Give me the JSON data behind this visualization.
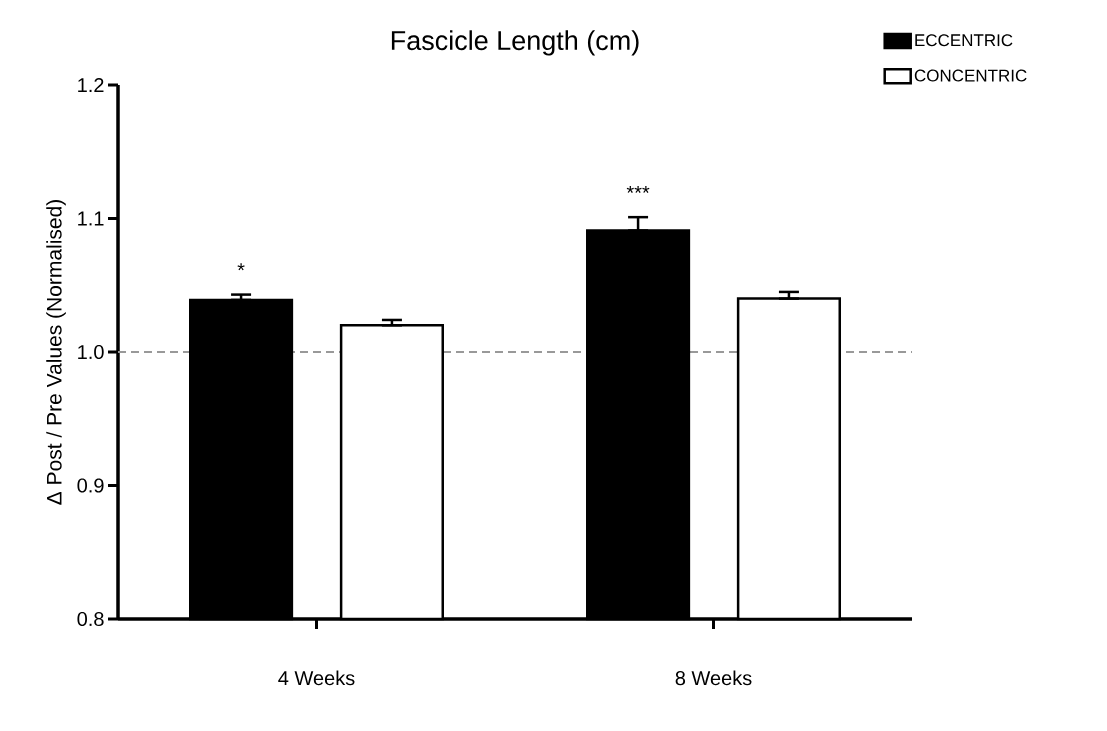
{
  "chart_data": {
    "type": "bar",
    "title": "Fascicle Length (cm)",
    "ylabel": "Δ Post / Pre Values (Normalised)",
    "categories": [
      "4 Weeks",
      "8 Weeks"
    ],
    "series": [
      {
        "name": "ECCENTRIC",
        "color": "#000000",
        "values": [
          1.039,
          1.091
        ],
        "errors": [
          [
            1.039,
            1.043
          ],
          [
            1.091,
            1.101
          ]
        ]
      },
      {
        "name": "CONCENTRIC",
        "color": "#ffffff",
        "values": [
          1.02,
          1.04
        ],
        "errors": [
          [
            1.02,
            1.024
          ],
          [
            1.04,
            1.045
          ]
        ]
      }
    ],
    "ylim": [
      0.8,
      1.2
    ],
    "yticks": [
      {
        "value": 0.8,
        "label": "0.8"
      },
      {
        "value": 0.9,
        "label": "0.9"
      },
      {
        "value": 1.0,
        "label": "1.0"
      },
      {
        "value": 1.1,
        "label": "1.1"
      },
      {
        "value": 1.2,
        "label": "1.2"
      }
    ],
    "ref_lines": [
      {
        "axis": "y",
        "value": 1.0,
        "color": "#999999",
        "line_style": "dashed"
      }
    ],
    "annotations": [
      "*",
      "***"
    ],
    "legend": "top right",
    "grid": false
  }
}
